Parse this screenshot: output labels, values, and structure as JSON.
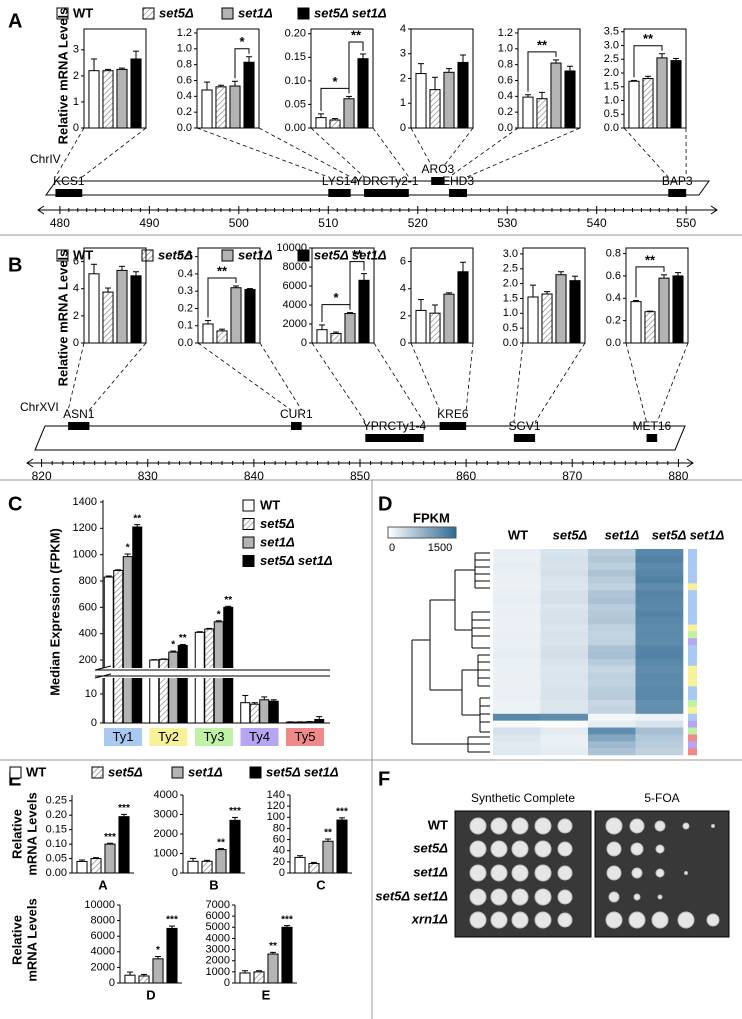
{
  "panel_labels": [
    "A",
    "B",
    "C",
    "D",
    "E",
    "F"
  ],
  "strains": [
    {
      "name": "WT",
      "color": "#ffffff"
    },
    {
      "name": "set5Δ",
      "color": "#ffffff",
      "pattern": "hatch"
    },
    {
      "name": "set1Δ",
      "color": "#b4b4b4"
    },
    {
      "name": "set5Δ set1Δ",
      "color": "#000000"
    }
  ],
  "y_label_ab": "Relative mRNA Levels",
  "y_label_e": [
    "Relative",
    "mRNA Levels"
  ],
  "chart_data": [
    {
      "type": "bar",
      "values": [
        2.2,
        2.2,
        2.25,
        2.65
      ],
      "errors": [
        0.45,
        0.05,
        0.05,
        0.3
      ],
      "ylim": [
        0,
        3.8
      ],
      "yticks": [
        0,
        1,
        2,
        3
      ]
    },
    {
      "type": "bar",
      "values": [
        0.48,
        0.52,
        0.53,
        0.83
      ],
      "errors": [
        0.1,
        0.02,
        0.06,
        0.07
      ],
      "ylim": [
        0,
        1.25
      ],
      "yticks": [
        {
          "value": 0,
          "label": "0.0"
        },
        0.2,
        0.4,
        0.6,
        0.8,
        {
          "value": 1,
          "label": "1.0"
        },
        1.2
      ],
      "significance": [
        {
          "bars": [
            2,
            3
          ],
          "label": "*"
        }
      ]
    },
    {
      "type": "bar",
      "values": [
        0.022,
        0.017,
        0.062,
        0.147
      ],
      "errors": [
        0.008,
        0.003,
        0.005,
        0.01
      ],
      "ylim": [
        0,
        0.21
      ],
      "yticks": [
        {
          "value": 0,
          "label": "0.00"
        },
        0.05,
        {
          "value": 0.1,
          "label": "0.10"
        },
        0.15,
        {
          "value": 0.2,
          "label": "0.20"
        }
      ],
      "significance": [
        {
          "bars": [
            0,
            2
          ],
          "label": "*"
        },
        {
          "bars": [
            2,
            3
          ],
          "label": "**"
        }
      ]
    },
    {
      "type": "bar",
      "values": [
        2.2,
        1.55,
        2.25,
        2.65
      ],
      "errors": [
        0.4,
        0.5,
        0.15,
        0.3
      ],
      "ylim": [
        0,
        4
      ],
      "yticks": [
        0,
        1,
        2,
        3,
        4
      ]
    },
    {
      "type": "bar",
      "values": [
        0.39,
        0.37,
        0.82,
        0.72
      ],
      "errors": [
        0.03,
        0.08,
        0.04,
        0.06
      ],
      "ylim": [
        0,
        1.25
      ],
      "yticks": [
        {
          "value": 0,
          "label": "0.0"
        },
        0.2,
        0.4,
        0.6,
        0.8,
        {
          "value": 1,
          "label": "1.0"
        },
        1.2
      ],
      "significance": [
        {
          "bars": [
            0,
            2
          ],
          "label": "**"
        }
      ]
    },
    {
      "type": "bar",
      "values": [
        1.7,
        1.8,
        2.55,
        2.45
      ],
      "errors": [
        0.03,
        0.08,
        0.15,
        0.08
      ],
      "ylim": [
        0,
        3.6
      ],
      "yticks": [
        {
          "value": 0,
          "label": "0.0"
        },
        0.5,
        {
          "value": 1,
          "label": "1.0"
        },
        1.5,
        {
          "value": 2,
          "label": "2.0"
        },
        2.5,
        {
          "value": 3,
          "label": "3.0"
        },
        3.5
      ],
      "significance": [
        {
          "bars": [
            0,
            2
          ],
          "label": "**"
        }
      ]
    },
    {
      "type": "bar",
      "values": [
        5.1,
        3.75,
        5.35,
        4.95
      ],
      "errors": [
        0.7,
        0.3,
        0.3,
        0.3
      ],
      "ylim": [
        0,
        7
      ],
      "yticks": [
        0,
        2,
        4,
        6
      ]
    },
    {
      "type": "bar",
      "values": [
        0.11,
        0.07,
        0.32,
        0.31
      ],
      "errors": [
        0.02,
        0.01,
        0.01,
        0.005
      ],
      "ylim": [
        0,
        0.55
      ],
      "yticks": [
        {
          "value": 0,
          "label": "0.0"
        },
        0.1,
        0.2,
        0.3,
        0.4,
        0.5
      ],
      "significance": [
        {
          "bars": [
            0,
            2
          ],
          "label": "**"
        }
      ]
    },
    {
      "type": "bar",
      "values": [
        1400,
        1000,
        3100,
        6600
      ],
      "errors": [
        500,
        150,
        100,
        700
      ],
      "ylim": [
        0,
        10000
      ],
      "yticks": [
        0,
        2000,
        4000,
        6000,
        8000,
        10000
      ],
      "significance": [
        {
          "bars": [
            0,
            2
          ],
          "label": "*"
        },
        {
          "bars": [
            2,
            3
          ],
          "label": "**"
        }
      ]
    },
    {
      "type": "bar",
      "values": [
        2.4,
        2.2,
        3.6,
        5.25
      ],
      "errors": [
        0.8,
        0.6,
        0.1,
        0.7
      ],
      "ylim": [
        0,
        7
      ],
      "yticks": [
        0,
        2,
        4,
        6
      ]
    },
    {
      "type": "bar",
      "values": [
        1.55,
        1.65,
        2.3,
        2.1
      ],
      "errors": [
        0.4,
        0.08,
        0.1,
        0.15
      ],
      "ylim": [
        0,
        3.2
      ],
      "yticks": [
        {
          "value": 0,
          "label": "0.0"
        },
        0.5,
        {
          "value": 1,
          "label": "1.0"
        },
        1.5,
        {
          "value": 2,
          "label": "2.0"
        },
        2.5,
        {
          "value": 3,
          "label": "3.0"
        }
      ]
    },
    {
      "type": "bar",
      "values": [
        0.37,
        0.28,
        0.58,
        0.6
      ],
      "errors": [
        0.01,
        0.005,
        0.03,
        0.03
      ],
      "ylim": [
        0,
        0.85
      ],
      "yticks": [
        {
          "value": 0,
          "label": "0.0"
        },
        0.2,
        0.4,
        0.6,
        0.8
      ],
      "significance": [
        {
          "bars": [
            0,
            2
          ],
          "label": "**"
        }
      ]
    },
    {
      "type": "grouped_bar",
      "y_label": "Median Expression (FPKM)",
      "categories": [
        "Ty1",
        "Ty2",
        "Ty3",
        "Ty4",
        "Ty5"
      ],
      "category_colors": [
        "#a9c9f2",
        "#f6f29a",
        "#bff2a6",
        "#b6a6f2",
        "#f08a8a"
      ],
      "ylim": [
        0,
        1400
      ],
      "ybreak": [
        15,
        150
      ],
      "yticks": [
        0,
        10,
        200,
        400,
        600,
        800,
        1000,
        1200,
        1400
      ],
      "series": [
        {
          "name": "WT",
          "color": "#ffffff",
          "values": [
            830,
            200,
            410,
            7,
            0.3
          ],
          "errors": [
            8,
            3,
            5,
            2.5,
            0.1
          ]
        },
        {
          "name": "set5Δ",
          "color": "#ffffff",
          "pattern": "hatch",
          "values": [
            880,
            205,
            435,
            6.5,
            0.3
          ],
          "errors": [
            5,
            3,
            5,
            0.5,
            0.1
          ]
        },
        {
          "name": "set1Δ",
          "color": "#b4b4b4",
          "values": [
            985,
            260,
            490,
            8,
            0.4
          ],
          "errors": [
            20,
            8,
            8,
            1,
            0.1
          ],
          "stars": [
            "*",
            "*",
            "*",
            null,
            null
          ]
        },
        {
          "name": "set5Δ set1Δ",
          "color": "#000000",
          "values": [
            1210,
            310,
            600,
            7.5,
            1.2
          ],
          "errors": [
            18,
            8,
            8,
            0.5,
            1
          ],
          "stars": [
            "**",
            "**",
            "**",
            null,
            null
          ]
        }
      ]
    },
    {
      "type": "heatmap",
      "colorbar_label": "FPKM",
      "zlim": [
        0,
        1500
      ],
      "zticks": [
        0,
        1500
      ],
      "colormap": [
        "#ffffff",
        "#2f6a95"
      ],
      "columns": [
        "WT",
        "set5Δ",
        "set1Δ",
        "set5Δ set1Δ"
      ],
      "rows": [
        [
          160,
          280,
          520,
          1200
        ],
        [
          150,
          300,
          560,
          1250
        ],
        [
          170,
          290,
          480,
          1180
        ],
        [
          160,
          310,
          600,
          1220
        ],
        [
          150,
          280,
          520,
          1260
        ],
        [
          140,
          260,
          450,
          1150
        ],
        [
          160,
          300,
          580,
          1230
        ],
        [
          170,
          310,
          620,
          1210
        ],
        [
          150,
          270,
          500,
          1190
        ],
        [
          160,
          290,
          540,
          1240
        ],
        [
          150,
          300,
          560,
          1200
        ],
        [
          140,
          260,
          470,
          1170
        ],
        [
          160,
          290,
          430,
          1180
        ],
        [
          150,
          270,
          450,
          1160
        ],
        [
          160,
          300,
          600,
          1230
        ],
        [
          170,
          320,
          640,
          1250
        ],
        [
          150,
          280,
          520,
          1200
        ],
        [
          140,
          250,
          420,
          1150
        ],
        [
          150,
          270,
          460,
          1180
        ],
        [
          140,
          260,
          440,
          1160
        ],
        [
          150,
          280,
          500,
          1190
        ],
        [
          160,
          290,
          520,
          1200
        ],
        [
          130,
          250,
          400,
          1120
        ],
        [
          140,
          260,
          430,
          1140
        ],
        [
          1200,
          1150,
          80,
          120
        ],
        [
          60,
          40,
          180,
          280
        ],
        [
          300,
          200,
          1150,
          650
        ],
        [
          250,
          150,
          900,
          550
        ],
        [
          200,
          160,
          700,
          500
        ],
        [
          220,
          180,
          600,
          450
        ]
      ],
      "row_families": [
        "Ty1",
        "Ty1",
        "Ty1",
        "Ty1",
        "Ty1",
        "Ty2",
        "Ty1",
        "Ty1",
        "Ty1",
        "Ty1",
        "Ty1",
        "Ty2",
        "Ty3",
        "Ty4",
        "Ty1",
        "Ty1",
        "Ty1",
        "Ty2",
        "Ty2",
        "Ty2",
        "Ty1",
        "Ty1",
        "Ty3",
        "Ty2",
        "Ty1",
        "Ty4",
        "Ty3",
        "Ty5",
        "Ty4",
        "Ty5"
      ]
    },
    {
      "type": "bar",
      "xlabel": "A",
      "values": [
        0.04,
        0.05,
        0.1,
        0.195
      ],
      "errors": [
        0.005,
        0.003,
        0.003,
        0.008
      ],
      "ylim": [
        0,
        0.27
      ],
      "yticks": [
        {
          "value": 0,
          "label": "0.00"
        },
        0.05,
        {
          "value": 0.1,
          "label": "0.10"
        },
        0.15,
        {
          "value": 0.2,
          "label": "0.20"
        },
        0.25
      ],
      "stars": [
        null,
        null,
        "***",
        "***"
      ]
    },
    {
      "type": "bar",
      "xlabel": "B",
      "values": [
        600,
        600,
        1200,
        2700
      ],
      "errors": [
        150,
        50,
        50,
        150
      ],
      "ylim": [
        0,
        4000
      ],
      "yticks": [
        0,
        1000,
        2000,
        3000,
        4000
      ],
      "stars": [
        null,
        null,
        "**",
        "***"
      ]
    },
    {
      "type": "bar",
      "xlabel": "C",
      "values": [
        28,
        17,
        57,
        95
      ],
      "errors": [
        3,
        2,
        4,
        4
      ],
      "ylim": [
        0,
        140
      ],
      "yticks": [
        0,
        20,
        40,
        60,
        80,
        100,
        120,
        140
      ],
      "stars": [
        null,
        null,
        "**",
        "***"
      ]
    },
    {
      "type": "bar",
      "xlabel": "D",
      "values": [
        1000,
        900,
        3100,
        7000
      ],
      "errors": [
        400,
        200,
        300,
        300
      ],
      "ylim": [
        0,
        10000
      ],
      "yticks": [
        0,
        2000,
        4000,
        6000,
        8000,
        10000
      ],
      "stars": [
        null,
        null,
        "*",
        "***"
      ]
    },
    {
      "type": "bar",
      "xlabel": "E",
      "values": [
        900,
        1000,
        2600,
        5000
      ],
      "errors": [
        200,
        100,
        150,
        150
      ],
      "ylim": [
        0,
        7000
      ],
      "yticks": [
        0,
        1000,
        2000,
        3000,
        4000,
        5000,
        6000,
        7000
      ],
      "stars": [
        null,
        null,
        "**",
        "***"
      ]
    }
  ],
  "maps": [
    {
      "label": "ChrIV",
      "xlim": [
        478,
        553
      ],
      "xticks": [
        480,
        490,
        500,
        510,
        520,
        530,
        540,
        550
      ],
      "genes": [
        {
          "name": "KCS1",
          "start": 479.5,
          "end": 482.5
        },
        {
          "name": "LYS14",
          "start": 510,
          "end": 512.5
        },
        {
          "name": "YDRCTy2-1",
          "start": 514,
          "end": 519
        },
        {
          "name": "ARO3",
          "start": 521.5,
          "end": 523
        },
        {
          "name": "EHD3",
          "start": 523.5,
          "end": 525.5
        },
        {
          "name": "BAP3",
          "start": 548,
          "end": 550
        }
      ]
    },
    {
      "label": "ChrXVI",
      "xlim": [
        819,
        881
      ],
      "xticks": [
        820,
        830,
        840,
        850,
        860,
        870,
        880
      ],
      "genes": [
        {
          "name": "ASN1",
          "start": 822.5,
          "end": 824.5
        },
        {
          "name": "CUR1",
          "start": 843.5,
          "end": 844.5
        },
        {
          "name": "YPRCTy1-4",
          "start": 850.5,
          "end": 856
        },
        {
          "name": "KRE6",
          "start": 857.5,
          "end": 860
        },
        {
          "name": "SGV1",
          "start": 864.5,
          "end": 866.5
        },
        {
          "name": "MET16",
          "start": 877,
          "end": 878
        }
      ]
    }
  ],
  "spot_assay": {
    "media": [
      "Synthetic Complete",
      "5-FOA"
    ],
    "strains": [
      "WT",
      "set5Δ",
      "set1Δ",
      "set5Δ set1Δ",
      "xrn1Δ"
    ]
  }
}
